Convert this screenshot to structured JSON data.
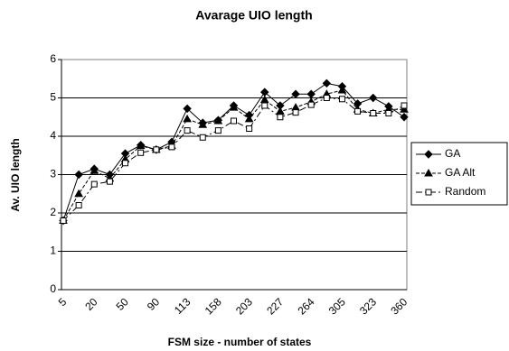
{
  "chart_data": {
    "type": "line",
    "title": "Avarage UIO length",
    "x_label": "FSM size - number of states",
    "y_label": "Av. UIO length",
    "categories": [
      "5",
      null,
      "20",
      null,
      "50",
      null,
      "90",
      null,
      "113",
      null,
      "158",
      null,
      "203",
      null,
      "227",
      null,
      "264",
      null,
      "305",
      null,
      "323",
      null,
      "360"
    ],
    "series": [
      {
        "name": "GA",
        "color": "#000000",
        "marker": "diamond",
        "dash": "solid",
        "values": [
          1.8,
          3.0,
          3.15,
          3.0,
          3.55,
          3.77,
          3.65,
          3.85,
          4.72,
          4.35,
          4.42,
          4.8,
          4.55,
          5.15,
          4.8,
          5.1,
          5.1,
          5.38,
          5.3,
          4.85,
          5.0,
          4.78,
          4.5
        ]
      },
      {
        "name": "GA Alt",
        "color": "#000000",
        "marker": "triangle",
        "dash": "dashed",
        "values": [
          1.8,
          2.5,
          3.1,
          2.9,
          3.4,
          3.75,
          3.65,
          3.75,
          4.45,
          4.3,
          4.4,
          4.75,
          4.45,
          4.95,
          4.65,
          4.75,
          4.9,
          5.1,
          5.2,
          4.7,
          4.6,
          4.7,
          4.7
        ]
      },
      {
        "name": "Random",
        "color": "#000000",
        "marker": "square",
        "dash": "dash-dot",
        "values": [
          1.8,
          2.2,
          2.75,
          2.82,
          3.3,
          3.57,
          3.65,
          3.72,
          4.15,
          3.97,
          4.15,
          4.4,
          4.2,
          4.8,
          4.5,
          4.62,
          4.82,
          5.0,
          4.97,
          4.65,
          4.6,
          4.6,
          4.8
        ]
      }
    ],
    "ylim": [
      0,
      6
    ],
    "yticks": [
      0,
      1,
      2,
      3,
      4,
      5,
      6
    ],
    "grid": true,
    "legend": "right"
  }
}
